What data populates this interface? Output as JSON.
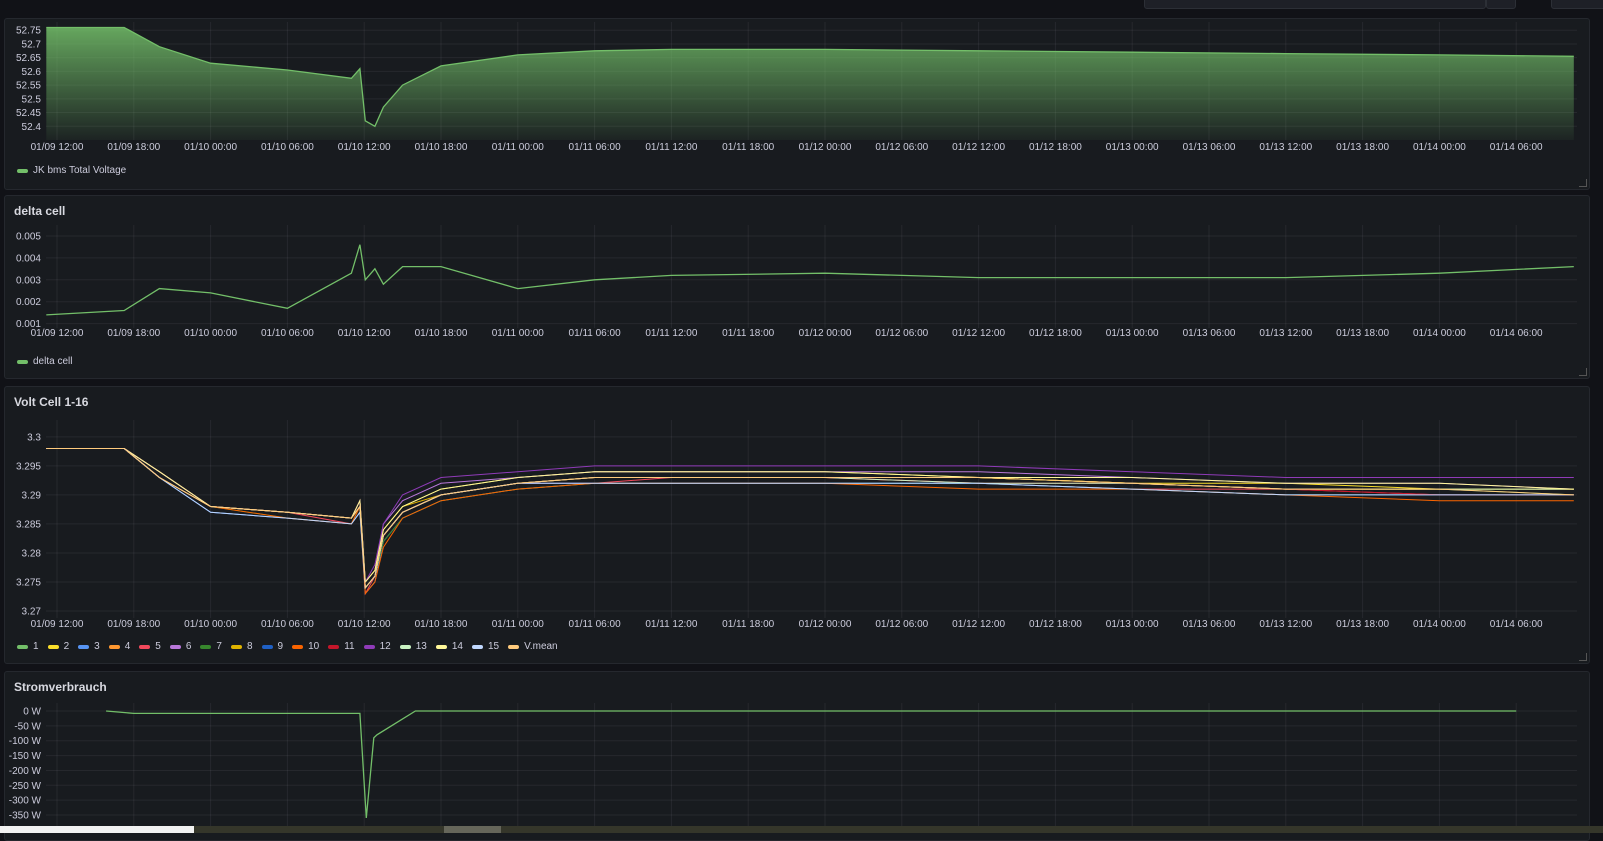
{
  "x_ticks": [
    "01/09 12:00",
    "01/09 18:00",
    "01/10 00:00",
    "01/10 06:00",
    "01/10 12:00",
    "01/10 18:00",
    "01/11 00:00",
    "01/11 06:00",
    "01/11 12:00",
    "01/11 18:00",
    "01/12 00:00",
    "01/12 06:00",
    "01/12 12:00",
    "01/12 18:00",
    "01/13 00:00",
    "01/13 06:00",
    "01/13 12:00",
    "01/13 18:00",
    "01/14 00:00",
    "01/14 06:00"
  ],
  "panels": {
    "total_voltage": {
      "title": "",
      "legend": [
        "JK bms Total Voltage"
      ]
    },
    "delta_cell": {
      "title": "delta cell",
      "legend": [
        "delta cell"
      ]
    },
    "volt_cell": {
      "title": "Volt Cell 1-16",
      "legend": [
        "1",
        "2",
        "3",
        "4",
        "5",
        "6",
        "7",
        "8",
        "9",
        "10",
        "11",
        "12",
        "13",
        "14",
        "15",
        "V.mean"
      ]
    },
    "power": {
      "title": "Stromverbrauch",
      "legend": []
    }
  },
  "chart_data": [
    {
      "type": "area",
      "yticks": [
        "52.75",
        "52.7",
        "52.65",
        "52.6",
        "52.55",
        "52.5",
        "52.45",
        "52.4"
      ],
      "ylim": [
        52.35,
        52.78
      ],
      "grid": true,
      "legend_placement": "bottom-left",
      "x": [
        "01/09 11:10",
        "01/09 17:15",
        "01/09 20:00",
        "01/10 00:00",
        "01/10 06:00",
        "01/10 11:00",
        "01/10 11:40",
        "01/10 12:05",
        "01/10 12:50",
        "01/10 13:30",
        "01/10 15:00",
        "01/10 18:00",
        "01/11 00:00",
        "01/11 06:00",
        "01/11 12:00",
        "01/12 00:00",
        "01/12 12:00",
        "01/13 00:00",
        "01/13 12:00",
        "01/14 00:00",
        "01/14 10:30"
      ],
      "series": [
        {
          "name": "JK bms Total Voltage",
          "color": "#73bf69",
          "values": [
            52.76,
            52.76,
            52.69,
            52.63,
            52.605,
            52.575,
            52.61,
            52.42,
            52.4,
            52.47,
            52.55,
            52.62,
            52.66,
            52.675,
            52.68,
            52.68,
            52.675,
            52.67,
            52.665,
            52.66,
            52.655
          ]
        }
      ]
    },
    {
      "type": "line",
      "yticks": [
        "0.005",
        "0.004",
        "0.003",
        "0.002",
        "0.001"
      ],
      "ylim": [
        0.0008,
        0.0055
      ],
      "grid": true,
      "legend_placement": "bottom-left",
      "x": [
        "01/09 11:10",
        "01/09 17:15",
        "01/09 20:00",
        "01/10 00:00",
        "01/10 06:00",
        "01/10 11:00",
        "01/10 11:40",
        "01/10 12:05",
        "01/10 12:50",
        "01/10 13:30",
        "01/10 15:00",
        "01/10 18:00",
        "01/11 00:00",
        "01/11 06:00",
        "01/11 12:00",
        "01/12 00:00",
        "01/12 12:00",
        "01/13 00:00",
        "01/13 12:00",
        "01/14 00:00",
        "01/14 10:30"
      ],
      "series": [
        {
          "name": "delta cell",
          "color": "#73bf69",
          "values": [
            0.0014,
            0.0016,
            0.0026,
            0.0024,
            0.0017,
            0.0033,
            0.0046,
            0.003,
            0.0035,
            0.0028,
            0.0036,
            0.0036,
            0.0026,
            0.003,
            0.0032,
            0.0033,
            0.0031,
            0.0031,
            0.0031,
            0.0033,
            0.0036
          ]
        }
      ]
    },
    {
      "type": "line",
      "yticks": [
        "3.3",
        "3.295",
        "3.29",
        "3.285",
        "3.28",
        "3.275",
        "3.27"
      ],
      "ylim": [
        3.2688,
        3.3029
      ],
      "grid": true,
      "legend_placement": "bottom-left",
      "x": [
        "01/09 11:10",
        "01/09 17:15",
        "01/09 20:00",
        "01/10 00:00",
        "01/10 06:00",
        "01/10 11:00",
        "01/10 11:40",
        "01/10 12:05",
        "01/10 12:50",
        "01/10 13:30",
        "01/10 15:00",
        "01/10 18:00",
        "01/11 00:00",
        "01/11 06:00",
        "01/11 12:00",
        "01/12 00:00",
        "01/12 12:00",
        "01/13 00:00",
        "01/13 12:00",
        "01/14 00:00",
        "01/14 10:30"
      ],
      "series": [
        {
          "name": "1",
          "color": "#73bf69",
          "values": [
            3.298,
            3.298,
            3.293,
            3.288,
            3.287,
            3.286,
            3.288,
            3.274,
            3.276,
            3.283,
            3.287,
            3.29,
            3.292,
            3.293,
            3.293,
            3.293,
            3.293,
            3.292,
            3.291,
            3.291,
            3.29
          ]
        },
        {
          "name": "2",
          "color": "#fade2a",
          "values": [
            3.298,
            3.298,
            3.294,
            3.288,
            3.287,
            3.286,
            3.289,
            3.275,
            3.277,
            3.284,
            3.288,
            3.291,
            3.293,
            3.294,
            3.294,
            3.294,
            3.293,
            3.292,
            3.292,
            3.291,
            3.291
          ]
        },
        {
          "name": "3",
          "color": "#5794f2",
          "values": [
            3.298,
            3.298,
            3.293,
            3.287,
            3.286,
            3.285,
            3.287,
            3.273,
            3.275,
            3.282,
            3.286,
            3.289,
            3.291,
            3.292,
            3.292,
            3.292,
            3.292,
            3.291,
            3.29,
            3.29,
            3.29
          ]
        },
        {
          "name": "4",
          "color": "#ff9830",
          "values": [
            3.298,
            3.298,
            3.293,
            3.288,
            3.287,
            3.286,
            3.288,
            3.274,
            3.276,
            3.283,
            3.287,
            3.29,
            3.292,
            3.293,
            3.293,
            3.293,
            3.293,
            3.292,
            3.291,
            3.291,
            3.291
          ]
        },
        {
          "name": "5",
          "color": "#f2495c",
          "values": [
            3.298,
            3.298,
            3.293,
            3.288,
            3.287,
            3.285,
            3.288,
            3.273,
            3.276,
            3.283,
            3.287,
            3.29,
            3.292,
            3.292,
            3.293,
            3.293,
            3.292,
            3.291,
            3.291,
            3.29,
            3.29
          ]
        },
        {
          "name": "6",
          "color": "#b877d9",
          "values": [
            3.298,
            3.298,
            3.294,
            3.288,
            3.287,
            3.286,
            3.289,
            3.275,
            3.277,
            3.285,
            3.289,
            3.292,
            3.293,
            3.294,
            3.294,
            3.294,
            3.294,
            3.293,
            3.292,
            3.292,
            3.291
          ]
        },
        {
          "name": "7",
          "color": "#37872d",
          "values": [
            3.298,
            3.298,
            3.293,
            3.288,
            3.286,
            3.285,
            3.288,
            3.274,
            3.276,
            3.282,
            3.286,
            3.289,
            3.291,
            3.292,
            3.292,
            3.292,
            3.292,
            3.291,
            3.29,
            3.29,
            3.29
          ]
        },
        {
          "name": "8",
          "color": "#e0b400",
          "values": [
            3.298,
            3.298,
            3.294,
            3.288,
            3.287,
            3.286,
            3.289,
            3.275,
            3.277,
            3.284,
            3.288,
            3.29,
            3.292,
            3.293,
            3.293,
            3.293,
            3.293,
            3.292,
            3.291,
            3.291,
            3.291
          ]
        },
        {
          "name": "9",
          "color": "#1f60c4",
          "values": [
            3.298,
            3.298,
            3.293,
            3.287,
            3.286,
            3.285,
            3.287,
            3.274,
            3.276,
            3.283,
            3.287,
            3.29,
            3.292,
            3.292,
            3.292,
            3.292,
            3.292,
            3.291,
            3.29,
            3.29,
            3.29
          ]
        },
        {
          "name": "10",
          "color": "#fa6400",
          "values": [
            3.298,
            3.298,
            3.293,
            3.288,
            3.286,
            3.285,
            3.288,
            3.273,
            3.275,
            3.281,
            3.286,
            3.289,
            3.291,
            3.292,
            3.292,
            3.292,
            3.291,
            3.291,
            3.29,
            3.289,
            3.289
          ]
        },
        {
          "name": "11",
          "color": "#c4162a",
          "values": [
            3.298,
            3.298,
            3.293,
            3.288,
            3.287,
            3.286,
            3.288,
            3.274,
            3.276,
            3.283,
            3.287,
            3.29,
            3.292,
            3.293,
            3.293,
            3.293,
            3.292,
            3.292,
            3.291,
            3.29,
            3.29
          ]
        },
        {
          "name": "12",
          "color": "#8f3bb8",
          "values": [
            3.298,
            3.298,
            3.294,
            3.288,
            3.287,
            3.286,
            3.289,
            3.275,
            3.278,
            3.285,
            3.29,
            3.293,
            3.294,
            3.295,
            3.295,
            3.295,
            3.295,
            3.294,
            3.293,
            3.293,
            3.293
          ]
        },
        {
          "name": "13",
          "color": "#c8f2c2",
          "values": [
            3.298,
            3.298,
            3.293,
            3.288,
            3.287,
            3.286,
            3.288,
            3.274,
            3.276,
            3.283,
            3.287,
            3.29,
            3.292,
            3.293,
            3.293,
            3.293,
            3.292,
            3.292,
            3.291,
            3.291,
            3.291
          ]
        },
        {
          "name": "14",
          "color": "#fff899",
          "values": [
            3.298,
            3.298,
            3.294,
            3.288,
            3.287,
            3.286,
            3.289,
            3.275,
            3.277,
            3.284,
            3.288,
            3.291,
            3.293,
            3.294,
            3.294,
            3.294,
            3.293,
            3.293,
            3.292,
            3.292,
            3.291
          ]
        },
        {
          "name": "15",
          "color": "#c0d8ff",
          "values": [
            3.298,
            3.298,
            3.293,
            3.287,
            3.286,
            3.285,
            3.287,
            3.274,
            3.276,
            3.283,
            3.287,
            3.29,
            3.292,
            3.292,
            3.292,
            3.292,
            3.292,
            3.291,
            3.29,
            3.29,
            3.29
          ]
        },
        {
          "name": "V.mean",
          "color": "#ffcb7d",
          "values": [
            3.298,
            3.298,
            3.293,
            3.288,
            3.287,
            3.286,
            3.288,
            3.274,
            3.276,
            3.283,
            3.287,
            3.29,
            3.292,
            3.293,
            3.293,
            3.293,
            3.293,
            3.292,
            3.291,
            3.291,
            3.29
          ]
        }
      ]
    },
    {
      "type": "line",
      "yticks": [
        "0 W",
        "-50 W",
        "-100 W",
        "-150 W",
        "-200 W",
        "-250 W",
        "-300 W",
        "-350 W"
      ],
      "ylim": [
        -387,
        27
      ],
      "grid": true,
      "x": [
        "01/09 15:50",
        "01/09 18:00",
        "01/10 00:00",
        "01/10 06:00",
        "01/10 11:40",
        "01/10 12:10",
        "01/10 12:45",
        "01/10 13:00",
        "01/10 16:00",
        "01/14 06:00"
      ],
      "series": [
        {
          "color": "#73bf69",
          "values": [
            0,
            -8,
            -8,
            -8,
            -8,
            -360,
            -90,
            -80,
            0,
            0
          ]
        }
      ]
    }
  ]
}
